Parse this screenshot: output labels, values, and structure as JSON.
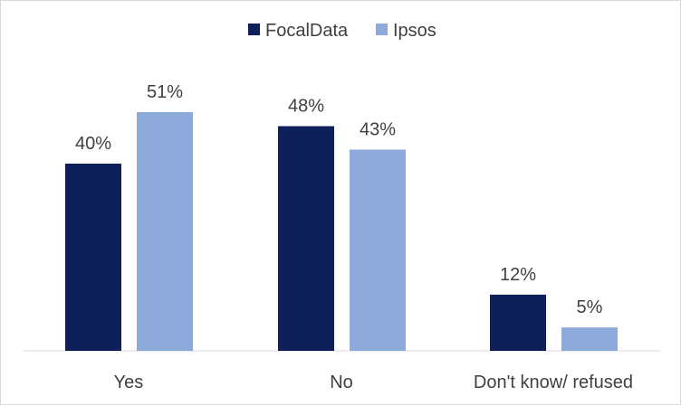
{
  "chart_data": {
    "type": "bar",
    "title": "",
    "xlabel": "",
    "ylabel": "",
    "categories": [
      "Yes",
      "No",
      "Don't know/ refused"
    ],
    "series": [
      {
        "name": "FocalData",
        "values": [
          40,
          48,
          12
        ],
        "labels": [
          "40%",
          "48%",
          "12%"
        ],
        "color": "#0f1f5a"
      },
      {
        "name": "Ipsos",
        "values": [
          51,
          43,
          5
        ],
        "labels": [
          "51%",
          "43%",
          "5%"
        ],
        "color": "#8eaadb"
      }
    ],
    "ylim": [
      0,
      60
    ],
    "grid": false,
    "legend_position": "top-center",
    "axis_line_color": "#d9d9d9"
  }
}
